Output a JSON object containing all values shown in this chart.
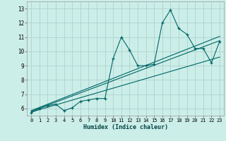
{
  "title": "",
  "xlabel": "Humidex (Indice chaleur)",
  "bg_color": "#cceee8",
  "grid_color": "#aacccc",
  "line_color": "#006666",
  "xlim": [
    -0.5,
    23.5
  ],
  "ylim": [
    5.5,
    13.5
  ],
  "xticks": [
    0,
    1,
    2,
    3,
    4,
    5,
    6,
    7,
    8,
    9,
    10,
    11,
    12,
    13,
    14,
    15,
    16,
    17,
    18,
    19,
    20,
    21,
    22,
    23
  ],
  "yticks": [
    6,
    7,
    8,
    9,
    10,
    11,
    12,
    13
  ],
  "zigzag_x": [
    0,
    1,
    2,
    3,
    4,
    5,
    6,
    7,
    8,
    9,
    10,
    11,
    12,
    13,
    14,
    15,
    16,
    17,
    18,
    19,
    20,
    21,
    22,
    23
  ],
  "zigzag_y": [
    5.7,
    6.0,
    6.2,
    6.3,
    5.85,
    6.05,
    6.5,
    6.6,
    6.7,
    6.7,
    9.5,
    11.0,
    10.1,
    9.0,
    9.0,
    9.1,
    12.0,
    12.9,
    11.6,
    11.2,
    10.2,
    10.2,
    9.2,
    10.7
  ],
  "line1_x": [
    0,
    23
  ],
  "line1_y": [
    5.75,
    9.6
  ],
  "line2_x": [
    0,
    23
  ],
  "line2_y": [
    5.8,
    10.75
  ],
  "line3_x": [
    0,
    23
  ],
  "line3_y": [
    5.85,
    11.05
  ]
}
